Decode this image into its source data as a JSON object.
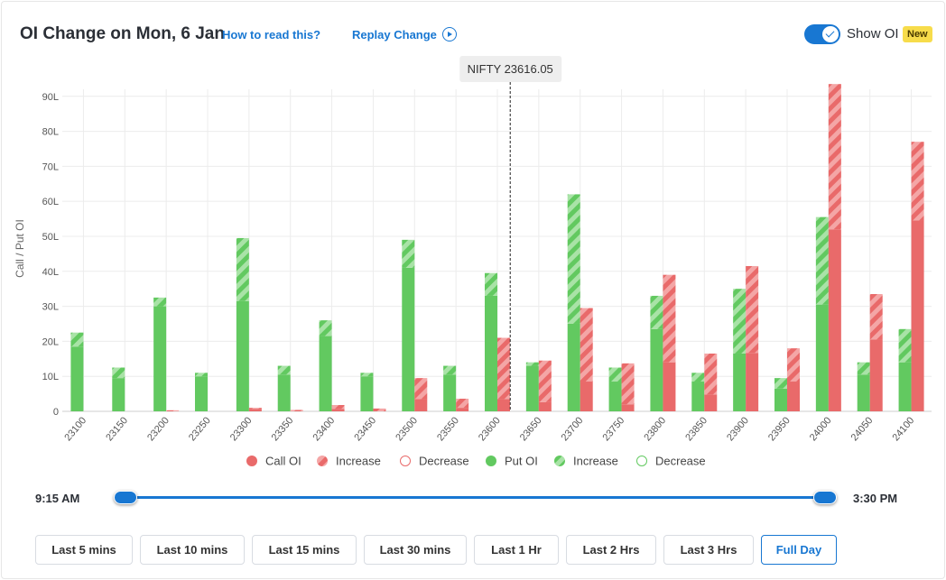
{
  "header": {
    "title": "OI Change on Mon, 6 Jan",
    "help_link": "How to read this?",
    "replay_link": "Replay Change",
    "toggle_label": "Show OI",
    "new_badge": "New"
  },
  "spot_label": "NIFTY 23616.05",
  "legend": [
    {
      "label": "Call OI",
      "kind": "call",
      "style": "solid"
    },
    {
      "label": "Increase",
      "kind": "call",
      "style": "hatch"
    },
    {
      "label": "Decrease",
      "kind": "call",
      "style": "outline"
    },
    {
      "label": "Put OI",
      "kind": "put",
      "style": "solid"
    },
    {
      "label": "Increase",
      "kind": "put",
      "style": "hatch"
    },
    {
      "label": "Decrease",
      "kind": "put",
      "style": "outline"
    }
  ],
  "colors": {
    "call": "#e96a6a",
    "call_light": "#f4a6a6",
    "put": "#62c960",
    "put_light": "#a9e3a7",
    "accent": "#1877d2"
  },
  "chart_data": {
    "type": "bar",
    "ylabel": "Call / Put OI",
    "ylim": [
      0,
      92
    ],
    "yticks": [
      0,
      10,
      20,
      30,
      40,
      50,
      60,
      70,
      80,
      90
    ],
    "ytick_suffix": "L",
    "spot": 23616.05,
    "categories": [
      "23100",
      "23150",
      "23200",
      "23250",
      "23300",
      "23350",
      "23400",
      "23450",
      "23500",
      "23550",
      "23600",
      "23650",
      "23700",
      "23750",
      "23800",
      "23850",
      "23900",
      "23950",
      "24000",
      "24050",
      "24100"
    ],
    "series": [
      {
        "name": "Put OI",
        "current": [
          22.5,
          12.5,
          32.5,
          11,
          49.5,
          13,
          26,
          11,
          49,
          13,
          39.5,
          14,
          62,
          12.5,
          33,
          11,
          35,
          9.5,
          55.5,
          14,
          23.5
        ],
        "previous": [
          18.5,
          9.5,
          30,
          10,
          31.5,
          10.5,
          21.5,
          10,
          41,
          10.5,
          33,
          13,
          25,
          8.5,
          23.5,
          8.5,
          16.5,
          6.5,
          30.5,
          10.5,
          14
        ]
      },
      {
        "name": "Call OI",
        "current": [
          0,
          0,
          0.3,
          0,
          1,
          0.4,
          1.8,
          0.8,
          9.5,
          3.6,
          21,
          14.5,
          29.5,
          13.7,
          39,
          16.5,
          41.5,
          18,
          93.5,
          33.5,
          77
        ],
        "previous": [
          0,
          0,
          0,
          0,
          0.7,
          0,
          0.7,
          0,
          3.5,
          1,
          3.5,
          2.6,
          8.5,
          2,
          14,
          4.8,
          16.7,
          8.5,
          52,
          20.5,
          54.5
        ]
      }
    ]
  },
  "slider": {
    "start": "9:15 AM",
    "end": "3:30 PM"
  },
  "time_buttons": [
    {
      "label": "Last 5 mins",
      "active": false
    },
    {
      "label": "Last 10 mins",
      "active": false
    },
    {
      "label": "Last 15 mins",
      "active": false
    },
    {
      "label": "Last 30 mins",
      "active": false
    },
    {
      "label": "Last 1 Hr",
      "active": false
    },
    {
      "label": "Last 2 Hrs",
      "active": false
    },
    {
      "label": "Last 3 Hrs",
      "active": false
    },
    {
      "label": "Full Day",
      "active": true
    }
  ]
}
